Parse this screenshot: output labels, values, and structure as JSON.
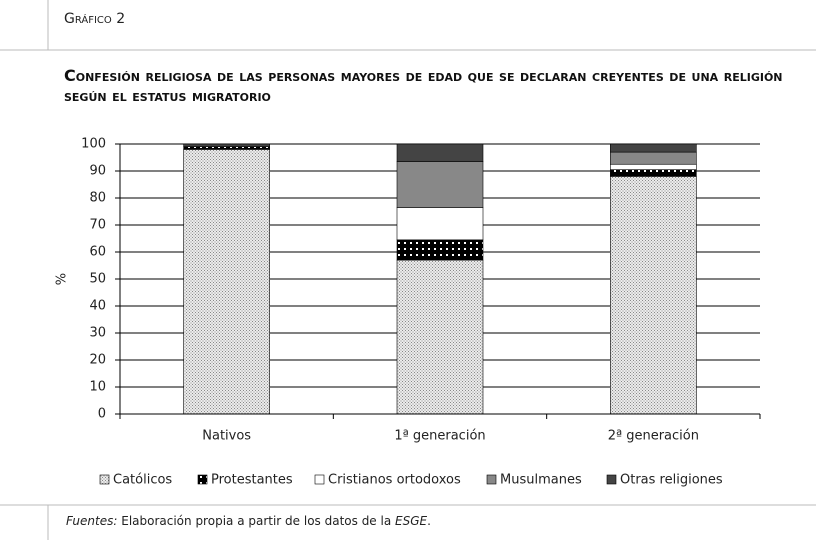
{
  "header": {
    "label": "Gráfico 2"
  },
  "chart_data": {
    "type": "stacked_bar",
    "title": "Confesión religiosa de las personas mayores de edad que se declaran creyentes de una religión según el estatus migratorio",
    "y_label": "%",
    "categories": [
      "Nativos",
      "1ª generación",
      "2ª generación"
    ],
    "series": [
      {
        "name": "Católicos",
        "color": "#e6e6e6",
        "fill_pattern": "light-dots",
        "values": [
          98,
          57,
          88
        ]
      },
      {
        "name": "Protestantes",
        "color": "#000000",
        "fill_pattern": "white-dots",
        "values": [
          1,
          7.5,
          2.5
        ]
      },
      {
        "name": "Cristianos ortodoxos",
        "color": "#ffffff",
        "fill_pattern": "none",
        "values": [
          0,
          12,
          2
        ]
      },
      {
        "name": "Musulmanes",
        "color": "#888888",
        "fill_pattern": "none",
        "values": [
          0,
          17,
          4.5
        ]
      },
      {
        "name": "Otras religiones",
        "color": "#444444",
        "fill_pattern": "none",
        "values": [
          1,
          6.5,
          3
        ]
      }
    ],
    "ylim": [
      0,
      100
    ],
    "yticks": [
      0,
      10,
      20,
      30,
      40,
      50,
      60,
      70,
      80,
      90,
      100
    ],
    "grid": true,
    "legend": "bottom"
  },
  "source": {
    "label": "Fuentes:",
    "text": "Elaboración propia a partir de los datos de la",
    "name": "ESGE",
    "end": "."
  }
}
